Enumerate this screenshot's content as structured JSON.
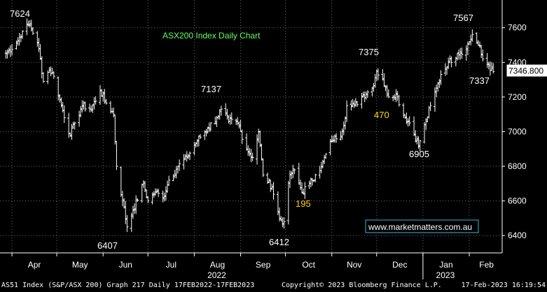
{
  "chart_data": {
    "type": "line",
    "style": "ohlc-bars",
    "title": "ASX200 Index Daily Chart",
    "y_ticks": [
      6400,
      6600,
      6800,
      7000,
      7200,
      7400,
      7600
    ],
    "ylim": [
      6300,
      7760
    ],
    "grid": true,
    "x_month_labels": [
      "Apr",
      "May",
      "Jun",
      "Jul",
      "Aug",
      "Sep",
      "Oct",
      "Nov",
      "Dec",
      "Jan",
      "Feb"
    ],
    "x_year_labels": [
      "2022",
      "2023"
    ],
    "last_price_label": "7346.800",
    "watermark": "www.marketmatters.com.au",
    "annotations": [
      {
        "text": "7624",
        "color": "#ffffff"
      },
      {
        "text": "6407",
        "color": "#ffffff"
      },
      {
        "text": "7137",
        "color": "#ffffff"
      },
      {
        "text": "6412",
        "color": "#ffffff"
      },
      {
        "text": "195",
        "color": "#ffd700"
      },
      {
        "text": "7375",
        "color": "#ffffff"
      },
      {
        "text": "470",
        "color": "#ffd700"
      },
      {
        "text": "6905",
        "color": "#ffffff"
      },
      {
        "text": "7567",
        "color": "#ffffff"
      },
      {
        "text": "7337",
        "color": "#ffffff"
      }
    ],
    "series": [
      {
        "anchor_closes": [
          {
            "date": "2022-03-28",
            "close": 7450
          },
          {
            "date": "2022-04-04",
            "close": 7510
          },
          {
            "date": "2022-04-08",
            "close": 7580
          },
          {
            "date": "2022-04-13",
            "close": 7624
          },
          {
            "date": "2022-04-19",
            "close": 7480
          },
          {
            "date": "2022-04-22",
            "close": 7290
          },
          {
            "date": "2022-04-26",
            "close": 7360
          },
          {
            "date": "2022-04-29",
            "close": 7320
          },
          {
            "date": "2022-05-04",
            "close": 7150
          },
          {
            "date": "2022-05-10",
            "close": 6980
          },
          {
            "date": "2022-05-13",
            "close": 7050
          },
          {
            "date": "2022-05-18",
            "close": 7150
          },
          {
            "date": "2022-05-24",
            "close": 7130
          },
          {
            "date": "2022-05-30",
            "close": 7240
          },
          {
            "date": "2022-06-02",
            "close": 7180
          },
          {
            "date": "2022-06-08",
            "close": 7100
          },
          {
            "date": "2022-06-10",
            "close": 6800
          },
          {
            "date": "2022-06-14",
            "close": 6600
          },
          {
            "date": "2022-06-17",
            "close": 6450
          },
          {
            "date": "2022-06-21",
            "close": 6550
          },
          {
            "date": "2022-06-28",
            "close": 6700
          },
          {
            "date": "2022-07-01",
            "close": 6600
          },
          {
            "date": "2022-07-06",
            "close": 6650
          },
          {
            "date": "2022-07-11",
            "close": 6620
          },
          {
            "date": "2022-07-15",
            "close": 6720
          },
          {
            "date": "2022-07-21",
            "close": 6800
          },
          {
            "date": "2022-07-27",
            "close": 6850
          },
          {
            "date": "2022-08-03",
            "close": 6950
          },
          {
            "date": "2022-08-10",
            "close": 7020
          },
          {
            "date": "2022-08-16",
            "close": 7080
          },
          {
            "date": "2022-08-19",
            "close": 7130
          },
          {
            "date": "2022-08-24",
            "close": 7060
          },
          {
            "date": "2022-08-30",
            "close": 7050
          },
          {
            "date": "2022-09-05",
            "close": 6900
          },
          {
            "date": "2022-09-09",
            "close": 6850
          },
          {
            "date": "2022-09-13",
            "close": 7000
          },
          {
            "date": "2022-09-16",
            "close": 6750
          },
          {
            "date": "2022-09-22",
            "close": 6680
          },
          {
            "date": "2022-09-27",
            "close": 6500
          },
          {
            "date": "2022-09-30",
            "close": 6480
          },
          {
            "date": "2022-10-04",
            "close": 6750
          },
          {
            "date": "2022-10-07",
            "close": 6780
          },
          {
            "date": "2022-10-12",
            "close": 6650
          },
          {
            "date": "2022-10-17",
            "close": 6700
          },
          {
            "date": "2022-10-21",
            "close": 6750
          },
          {
            "date": "2022-10-25",
            "close": 6800
          },
          {
            "date": "2022-11-01",
            "close": 6950
          },
          {
            "date": "2022-11-08",
            "close": 7000
          },
          {
            "date": "2022-11-11",
            "close": 7150
          },
          {
            "date": "2022-11-16",
            "close": 7150
          },
          {
            "date": "2022-11-21",
            "close": 7200
          },
          {
            "date": "2022-11-28",
            "close": 7250
          },
          {
            "date": "2022-12-01",
            "close": 7350
          },
          {
            "date": "2022-12-05",
            "close": 7300
          },
          {
            "date": "2022-12-09",
            "close": 7200
          },
          {
            "date": "2022-12-14",
            "close": 7220
          },
          {
            "date": "2022-12-19",
            "close": 7100
          },
          {
            "date": "2022-12-23",
            "close": 7050
          },
          {
            "date": "2022-12-29",
            "close": 6920
          },
          {
            "date": "2023-01-03",
            "close": 7060
          },
          {
            "date": "2023-01-06",
            "close": 7150
          },
          {
            "date": "2023-01-10",
            "close": 7250
          },
          {
            "date": "2023-01-13",
            "close": 7330
          },
          {
            "date": "2023-01-18",
            "close": 7400
          },
          {
            "date": "2023-01-24",
            "close": 7450
          },
          {
            "date": "2023-01-30",
            "close": 7480
          },
          {
            "date": "2023-02-03",
            "close": 7560
          },
          {
            "date": "2023-02-07",
            "close": 7500
          },
          {
            "date": "2023-02-10",
            "close": 7420
          },
          {
            "date": "2023-02-14",
            "close": 7380
          },
          {
            "date": "2023-02-17",
            "close": 7346.8
          }
        ]
      }
    ]
  },
  "footer": {
    "left": "AS51 Index (S&P/ASX 200) Graph 217  Daily 17FEB2022-17FEB2023",
    "mid": "Copyright© 2023 Bloomberg Finance L.P.",
    "right": "17-Feb-2023 16:19:54"
  }
}
